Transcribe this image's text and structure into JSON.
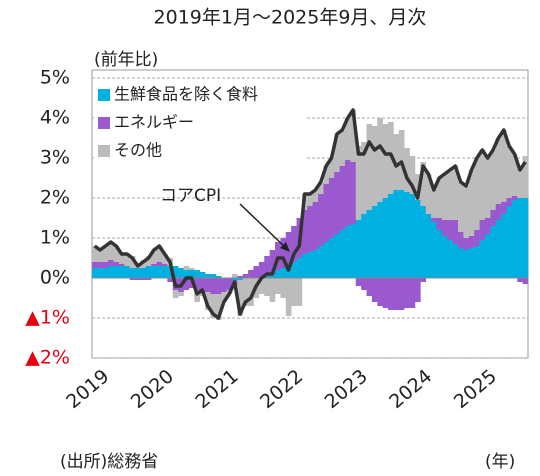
{
  "chart_data": {
    "type": "stacked_bar_line",
    "title": "2019年1月～2025年9月、月次",
    "y_axis_label": "(前年比)",
    "x_axis_label": "(年)",
    "source": "(出所)総務省",
    "annotation": "コアCPI",
    "categories": [
      "2019",
      null,
      null,
      null,
      null,
      null,
      null,
      null,
      null,
      null,
      null,
      null,
      "2020",
      null,
      null,
      null,
      null,
      null,
      null,
      null,
      null,
      null,
      null,
      null,
      "2021",
      null,
      null,
      null,
      null,
      null,
      null,
      null,
      null,
      null,
      null,
      null,
      "2022",
      null,
      null,
      null,
      null,
      null,
      null,
      null,
      null,
      null,
      null,
      null,
      "2023",
      null,
      null,
      null,
      null,
      null,
      null,
      null,
      null,
      null,
      null,
      null,
      "2024",
      null,
      null,
      null,
      null,
      null,
      null,
      null,
      null,
      null,
      null,
      null,
      "2025",
      null,
      null,
      null,
      null,
      null,
      null,
      null,
      null
    ],
    "series": [
      {
        "name": "生鮮食品を除く食料",
        "color": "#00b0e0",
        "kind": "bar",
        "values": [
          0.25,
          0.25,
          0.25,
          0.3,
          0.3,
          0.3,
          0.3,
          0.25,
          0.25,
          0.25,
          0.3,
          0.3,
          0.3,
          0.3,
          0.3,
          0.3,
          0.25,
          0.2,
          0.2,
          0.2,
          0.15,
          0.1,
          0.1,
          0.05,
          0.0,
          0.0,
          -0.05,
          -0.05,
          0.0,
          0.0,
          0.0,
          0.0,
          0.05,
          0.1,
          0.2,
          0.25,
          0.35,
          0.4,
          0.5,
          0.6,
          0.65,
          0.7,
          0.8,
          0.9,
          1.0,
          1.1,
          1.2,
          1.3,
          1.35,
          1.45,
          1.6,
          1.7,
          1.8,
          1.9,
          2.0,
          2.1,
          2.2,
          2.2,
          2.15,
          2.1,
          1.95,
          1.8,
          1.6,
          1.4,
          1.2,
          1.05,
          0.95,
          0.85,
          0.75,
          0.7,
          0.75,
          0.8,
          0.95,
          1.1,
          1.3,
          1.45,
          1.6,
          1.8,
          1.95,
          2.0,
          2.0
        ]
      },
      {
        "name": "エネルギー",
        "color": "#9b59d0",
        "kind": "bar",
        "values": [
          0.15,
          0.15,
          0.15,
          0.15,
          0.1,
          0.05,
          0.0,
          -0.05,
          -0.05,
          -0.05,
          -0.05,
          0.05,
          0.1,
          0.05,
          -0.1,
          -0.3,
          -0.35,
          -0.3,
          -0.25,
          -0.3,
          -0.35,
          -0.35,
          -0.4,
          -0.4,
          -0.35,
          -0.3,
          -0.15,
          0.05,
          0.1,
          0.2,
          0.3,
          0.4,
          0.5,
          0.6,
          0.7,
          0.75,
          0.8,
          0.9,
          1.0,
          1.1,
          1.15,
          1.2,
          1.3,
          1.45,
          1.5,
          1.55,
          1.6,
          1.65,
          1.55,
          -0.2,
          -0.3,
          -0.45,
          -0.6,
          -0.7,
          -0.75,
          -0.8,
          -0.8,
          -0.8,
          -0.75,
          -0.75,
          -0.6,
          -0.1,
          0.0,
          0.1,
          0.3,
          0.4,
          0.5,
          0.6,
          0.4,
          0.3,
          0.3,
          0.4,
          0.5,
          0.4,
          0.4,
          0.4,
          0.3,
          0.2,
          0.1,
          -0.1,
          -0.15
        ]
      },
      {
        "name": "その他",
        "color": "#bcbcbc",
        "kind": "bar",
        "values": [
          0.4,
          0.3,
          0.4,
          0.45,
          0.4,
          0.25,
          0.3,
          0.3,
          0.1,
          0.2,
          0.25,
          0.35,
          0.4,
          0.25,
          0.2,
          -0.2,
          -0.1,
          0.1,
          0.05,
          -0.3,
          -0.1,
          -0.45,
          -0.6,
          -0.65,
          -0.25,
          -0.1,
          0.1,
          -0.9,
          -0.7,
          -0.7,
          -0.5,
          -0.4,
          -0.45,
          -0.6,
          -0.4,
          -0.5,
          -0.95,
          -0.7,
          -0.7,
          0.4,
          0.3,
          0.3,
          0.3,
          0.45,
          0.5,
          0.95,
          0.9,
          1.05,
          1.3,
          1.85,
          1.8,
          2.15,
          2.0,
          2.1,
          1.85,
          1.8,
          1.4,
          1.5,
          1.1,
          0.95,
          0.65,
          1.1,
          1.0,
          0.7,
          1.0,
          1.15,
          1.25,
          1.35,
          1.25,
          1.3,
          1.65,
          1.8,
          1.75,
          1.5,
          1.5,
          1.65,
          1.8,
          1.3,
          1.05,
          0.8,
          1.05
        ]
      },
      {
        "name": "コアCPI",
        "color": "#333333",
        "kind": "line",
        "values": [
          0.8,
          0.7,
          0.8,
          0.9,
          0.8,
          0.6,
          0.6,
          0.5,
          0.3,
          0.4,
          0.5,
          0.7,
          0.8,
          0.6,
          0.4,
          -0.2,
          -0.2,
          0.0,
          0.0,
          -0.4,
          -0.3,
          -0.7,
          -0.9,
          -1.0,
          -0.6,
          -0.4,
          -0.1,
          -0.9,
          -0.6,
          -0.5,
          -0.2,
          0.0,
          0.1,
          0.1,
          0.5,
          0.5,
          0.2,
          0.6,
          0.8,
          2.1,
          2.1,
          2.2,
          2.4,
          2.8,
          3.0,
          3.6,
          3.7,
          4.0,
          4.2,
          3.1,
          3.1,
          3.4,
          3.2,
          3.3,
          3.1,
          3.1,
          2.8,
          2.9,
          2.5,
          2.3,
          2.0,
          2.8,
          2.6,
          2.2,
          2.5,
          2.6,
          2.7,
          2.8,
          2.4,
          2.3,
          2.7,
          3.0,
          3.2,
          3.0,
          3.2,
          3.5,
          3.7,
          3.3,
          3.1,
          2.7,
          2.9
        ]
      }
    ],
    "ylim": [
      -2,
      5.2
    ],
    "yticks": [
      {
        "value": -2,
        "label": "▲2%"
      },
      {
        "value": -1,
        "label": "▲1%"
      },
      {
        "value": 0,
        "label": "0%"
      },
      {
        "value": 1,
        "label": "1%"
      },
      {
        "value": 2,
        "label": "2%"
      },
      {
        "value": 3,
        "label": "3%"
      },
      {
        "value": 4,
        "label": "4%"
      },
      {
        "value": 5,
        "label": "5%"
      }
    ],
    "negative_tick_color": "#e60012",
    "grid": true
  }
}
